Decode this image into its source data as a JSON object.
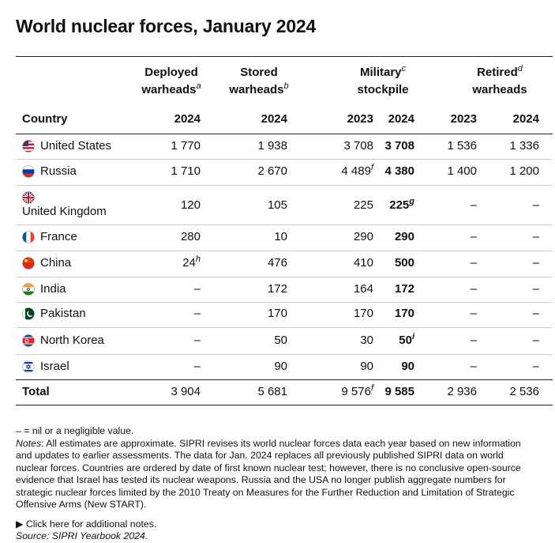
{
  "title": "World nuclear forces, January 2024",
  "table": {
    "group_headers": [
      {
        "lines": [
          {
            "text": "Deployed"
          },
          {
            "text": "warheads",
            "sup": "a"
          }
        ]
      },
      {
        "lines": [
          {
            "text": "Stored"
          },
          {
            "text": "warheads",
            "sup": "b"
          }
        ]
      },
      {
        "lines": [
          {
            "text": "Military",
            "sup": "c"
          },
          {
            "text": "stockpile"
          }
        ]
      },
      {
        "lines": [
          {
            "text": "Retired",
            "sup": "d"
          },
          {
            "text": "warheads"
          }
        ]
      }
    ],
    "columns": [
      "Country",
      "2024",
      "2024",
      "2023",
      "2024",
      "2023",
      "2024"
    ],
    "rows": [
      {
        "country": "United States",
        "values": [
          "1 770",
          "1 938",
          "3 708",
          "3 708",
          "1 536",
          "1 336"
        ]
      },
      {
        "country": "Russia",
        "values": [
          "1 710",
          "2 670",
          {
            "text": "4 489",
            "sup": "f"
          },
          "4 380",
          "1 400",
          "1 200"
        ]
      },
      {
        "country": "United Kingdom",
        "values": [
          "120",
          "105",
          "225",
          {
            "text": "225",
            "sup": "g"
          },
          "–",
          "–"
        ]
      },
      {
        "country": "France",
        "values": [
          "280",
          "10",
          "290",
          "290",
          "–",
          "–"
        ]
      },
      {
        "country": "China",
        "values": [
          {
            "text": "24",
            "sup": "h"
          },
          "476",
          "410",
          "500",
          "–",
          "–"
        ]
      },
      {
        "country": "India",
        "values": [
          "–",
          "172",
          "164",
          "172",
          "–",
          "–"
        ]
      },
      {
        "country": "Pakistan",
        "values": [
          "–",
          "170",
          "170",
          "170",
          "–",
          "–"
        ]
      },
      {
        "country": "North Korea",
        "values": [
          "–",
          "50",
          "30",
          {
            "text": "50",
            "sup": "i"
          },
          "–",
          "–"
        ]
      },
      {
        "country": "Israel",
        "values": [
          "–",
          "90",
          "90",
          "90",
          "–",
          "–"
        ]
      }
    ],
    "total": {
      "country": "Total",
      "values": [
        "3 904",
        "5 681",
        {
          "text": "9 576",
          "sup": "f"
        },
        "9 585",
        "2 936",
        "2 536"
      ]
    }
  },
  "legend_note": "– = nil or a negligible value.",
  "notes": {
    "label": "Notes",
    "text": ": All estimates are approximate. SIPRI revises its world nuclear forces data each year based on new information and updates to earlier assessments. The data for Jan. 2024 replaces all previously published SIPRI data on world nuclear forces. Countries are ordered by date of first known nuclear test; however, there is no conclusive open-source evidence that Israel has tested its nuclear weapons. Russia and the USA no longer publish aggregate numbers for strategic nuclear forces limited by the 2010 Treaty on Measures for the Further Reduction and Limitation of Strategic Offensive Arms (New START)."
  },
  "more_link": "Click here for additional notes.",
  "source": "Source: SIPRI Yearbook 2024."
}
